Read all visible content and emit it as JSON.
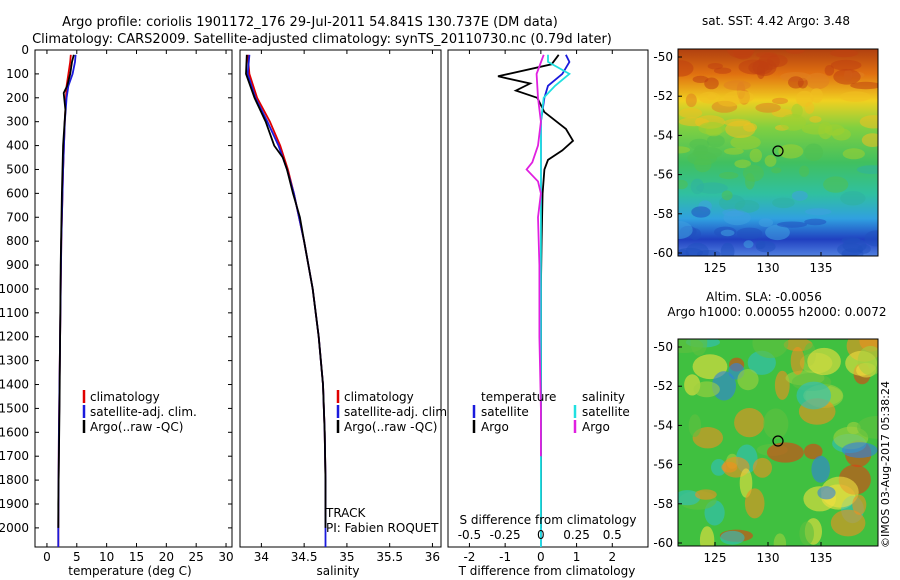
{
  "header": {
    "line1": "Argo profile: coriolis 1901172_176 29-Jul-2011 54.841S 130.737E (DM data)",
    "line2": "Climatology: CARS2009. Satellite-adjusted climatology: synTS_20110730.nc (0.79d later)"
  },
  "colors": {
    "climatology": "#e00000",
    "satellite": "#1a1adc",
    "argo": "#000000",
    "argo_salinity": "#e020e0",
    "satellite_salinity": "#20e0e0"
  },
  "chart_data": [
    {
      "type": "line",
      "panel": "temperature",
      "xlabel": "temperature (deg C)",
      "ylabel": "",
      "xlim": [
        -2,
        31
      ],
      "ylim": [
        2080,
        0
      ],
      "x_ticks": [
        "0",
        "5",
        "10",
        "15",
        "20",
        "25",
        "30"
      ],
      "y_ticks": [
        "0",
        "100",
        "200",
        "300",
        "400",
        "500",
        "600",
        "700",
        "800",
        "900",
        "1000",
        "1100",
        "1200",
        "1300",
        "1400",
        "1500",
        "1600",
        "1700",
        "1800",
        "1900",
        "2000"
      ],
      "legend": [
        "climatology",
        "satellite-adj. clim.",
        "Argo(..raw -QC)"
      ],
      "series": [
        {
          "name": "climatology",
          "depth": [
            20,
            50,
            100,
            150,
            200,
            300,
            500,
            800,
            1200,
            1600,
            2000,
            2080
          ],
          "values": [
            4.0,
            3.9,
            3.6,
            3.3,
            3.2,
            3.0,
            2.7,
            2.4,
            2.2,
            2.0,
            1.9,
            1.9
          ]
        },
        {
          "name": "satellite-adj. clim.",
          "depth": [
            20,
            50,
            100,
            150,
            200,
            300,
            500,
            800,
            1200,
            1600,
            2000,
            2080
          ],
          "values": [
            4.8,
            4.7,
            4.3,
            3.6,
            3.3,
            3.0,
            2.7,
            2.4,
            2.2,
            2.0,
            1.9,
            1.9
          ]
        },
        {
          "name": "Argo(..raw -QC)",
          "depth": [
            20,
            50,
            100,
            150,
            180,
            250,
            400,
            600,
            900,
            1200,
            1500,
            1700,
            1900,
            2000
          ],
          "values": [
            4.5,
            4.2,
            3.9,
            3.4,
            2.8,
            3.1,
            2.7,
            2.5,
            2.3,
            2.2,
            2.1,
            2.0,
            1.9,
            1.9
          ]
        }
      ]
    },
    {
      "type": "line",
      "panel": "salinity",
      "xlabel": "salinity",
      "xlim": [
        33.75,
        36.1
      ],
      "ylim": [
        2080,
        0
      ],
      "x_ticks": [
        "34",
        "34.5",
        "35",
        "35.5",
        "36"
      ],
      "legend": [
        "climatology",
        "satellite-adj. clim.",
        "Argo(..raw -QC)"
      ],
      "annotations": [
        "TRACK",
        "PI: Fabien ROQUET"
      ],
      "series": [
        {
          "name": "climatology",
          "depth": [
            20,
            100,
            200,
            300,
            400,
            500,
            600,
            700,
            800,
            900,
            1000,
            1200,
            1400,
            1600,
            1800,
            1950
          ],
          "values": [
            33.84,
            33.86,
            33.95,
            34.1,
            34.22,
            34.31,
            34.38,
            34.44,
            34.5,
            34.55,
            34.6,
            34.67,
            34.72,
            34.74,
            34.75,
            34.75
          ]
        },
        {
          "name": "satellite-adj. clim.",
          "depth": [
            20,
            100,
            200,
            300,
            400,
            500,
            600,
            700,
            800,
            900,
            1000,
            1200,
            1400,
            1600,
            1800,
            2080
          ],
          "values": [
            33.86,
            33.84,
            33.93,
            34.07,
            34.2,
            34.3,
            34.38,
            34.44,
            34.5,
            34.55,
            34.6,
            34.67,
            34.72,
            34.74,
            34.75,
            34.75
          ]
        },
        {
          "name": "Argo(..raw -QC)",
          "depth": [
            20,
            100,
            200,
            300,
            400,
            450,
            500,
            600,
            700,
            800,
            900,
            1000,
            1200,
            1400,
            1600,
            1800,
            2000
          ],
          "values": [
            33.83,
            33.82,
            33.92,
            34.05,
            34.15,
            34.25,
            34.3,
            34.37,
            34.45,
            34.5,
            34.55,
            34.6,
            34.67,
            34.72,
            34.74,
            34.75,
            34.75
          ]
        }
      ]
    },
    {
      "type": "line",
      "panel": "difference",
      "xlabel": "T difference from climatology",
      "top_label": "S difference from climatology",
      "xlim": [
        -2.6,
        3
      ],
      "ylim": [
        2080,
        0
      ],
      "x_ticks": [
        "-2",
        "-1",
        "0",
        "1",
        "2"
      ],
      "top_ticks": [
        "-0.5",
        "-0.25",
        "0",
        "0.25",
        "0.5"
      ],
      "legend_headers": [
        "temperature",
        "salinity"
      ],
      "legend": [
        "satellite",
        "Argo",
        "satellite",
        "Argo"
      ],
      "series": [
        {
          "name": "temperature satellite",
          "depth": [
            20,
            50,
            100,
            150,
            200,
            300,
            500,
            700,
            1000,
            1500,
            2080
          ],
          "values": [
            0.7,
            0.8,
            0.6,
            0.2,
            0.1,
            0.0,
            0.0,
            0.0,
            0.0,
            0.0,
            0.0
          ]
        },
        {
          "name": "temperature Argo",
          "depth": [
            20,
            60,
            110,
            140,
            170,
            200,
            260,
            330,
            380,
            420,
            460,
            500,
            600,
            800,
            1000,
            1500,
            2000
          ],
          "values": [
            0.5,
            0.3,
            -1.2,
            -0.3,
            -0.7,
            -0.1,
            0.1,
            0.7,
            0.9,
            0.6,
            0.2,
            0.1,
            0.05,
            0.02,
            0.0,
            0.0,
            0.0
          ]
        },
        {
          "name": "salinity satellite",
          "depth": [
            20,
            50,
            100,
            150,
            200,
            300,
            500,
            800,
            1000,
            1500,
            2080
          ],
          "values": [
            0.05,
            0.05,
            0.2,
            0.1,
            0.02,
            0.0,
            0.0,
            0.0,
            0.0,
            0.0,
            0.0
          ]
        },
        {
          "name": "salinity Argo",
          "depth": [
            20,
            100,
            200,
            300,
            400,
            470,
            500,
            550,
            600,
            700,
            900,
            1200,
            1500,
            1700
          ],
          "values": [
            0.02,
            -0.03,
            -0.02,
            0.0,
            -0.02,
            -0.06,
            -0.1,
            -0.02,
            0.0,
            -0.02,
            -0.01,
            -0.01,
            0.0,
            0.0
          ]
        }
      ]
    }
  ],
  "maps": {
    "sst": {
      "title": "sat. SST: 4.42 Argo: 3.48",
      "y_ticks": [
        "-50",
        "-52",
        "-54",
        "-56",
        "-58",
        "-60"
      ],
      "x_ticks": [
        "125",
        "130",
        "135"
      ]
    },
    "sla": {
      "title1": "Altim. SLA: -0.0056",
      "title2": "Argo h1000: 0.00055 h2000: 0.0072",
      "y_ticks": [
        "-50",
        "-52",
        "-54",
        "-56",
        "-58",
        "-60"
      ],
      "x_ticks": [
        "125",
        "130",
        "135"
      ]
    }
  },
  "footer": "©IMOS 03-Aug-2017 05:38:24"
}
